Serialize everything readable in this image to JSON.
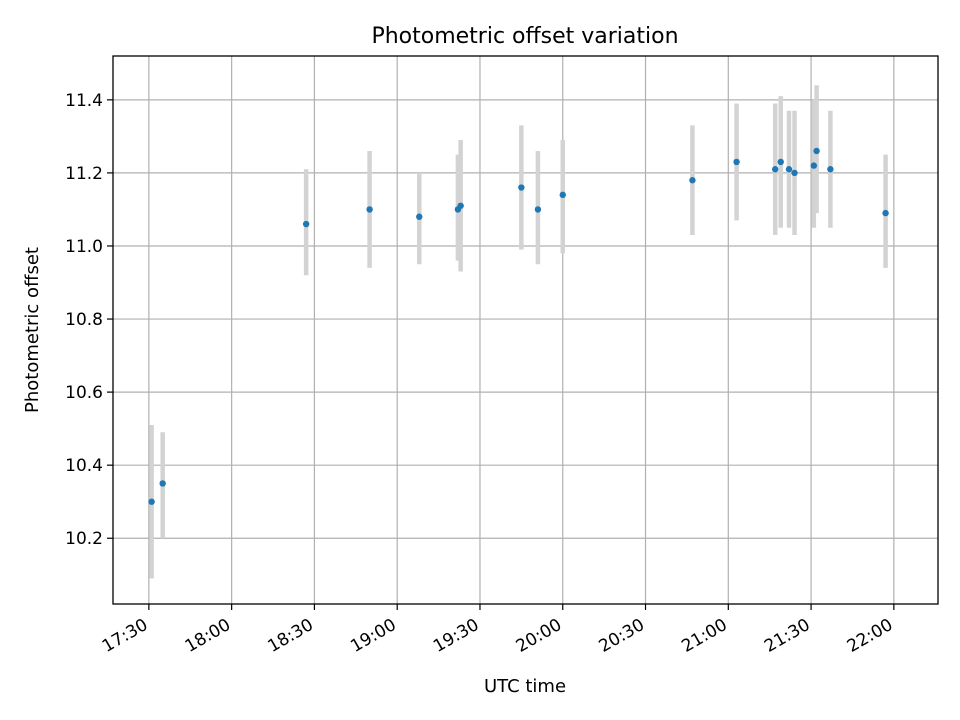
{
  "chart_data": {
    "type": "scatter",
    "title": "Photometric offset variation",
    "xlabel": "UTC time",
    "ylabel": "Photometric offset",
    "x_range": [
      "17:17",
      "22:16"
    ],
    "ylim": [
      10.02,
      11.52
    ],
    "grid": true,
    "x_ticks": [
      "17:30",
      "18:00",
      "18:30",
      "19:00",
      "19:30",
      "20:00",
      "20:30",
      "21:00",
      "21:30",
      "22:00"
    ],
    "y_ticks": [
      10.2,
      10.4,
      10.6,
      10.8,
      11.0,
      11.2,
      11.4
    ],
    "marker_color": "#1f77b4",
    "errorbar_color": "#d3d3d3",
    "series": [
      {
        "points": [
          {
            "t": "17:31",
            "y": 10.3,
            "err_low": 10.09,
            "err_high": 10.51
          },
          {
            "t": "17:35",
            "y": 10.35,
            "err_low": 10.2,
            "err_high": 10.49
          },
          {
            "t": "18:27",
            "y": 11.06,
            "err_low": 10.92,
            "err_high": 11.21
          },
          {
            "t": "18:50",
            "y": 11.1,
            "err_low": 10.94,
            "err_high": 11.26
          },
          {
            "t": "19:08",
            "y": 11.08,
            "err_low": 10.95,
            "err_high": 11.2
          },
          {
            "t": "19:22",
            "y": 11.1,
            "err_low": 10.96,
            "err_high": 11.25
          },
          {
            "t": "19:23",
            "y": 11.11,
            "err_low": 10.93,
            "err_high": 11.29
          },
          {
            "t": "19:45",
            "y": 11.16,
            "err_low": 10.99,
            "err_high": 11.33
          },
          {
            "t": "19:51",
            "y": 11.1,
            "err_low": 10.95,
            "err_high": 11.26
          },
          {
            "t": "20:00",
            "y": 11.14,
            "err_low": 10.98,
            "err_high": 11.29
          },
          {
            "t": "20:47",
            "y": 11.18,
            "err_low": 11.03,
            "err_high": 11.33
          },
          {
            "t": "21:03",
            "y": 11.23,
            "err_low": 11.07,
            "err_high": 11.39
          },
          {
            "t": "21:17",
            "y": 11.21,
            "err_low": 11.03,
            "err_high": 11.39
          },
          {
            "t": "21:19",
            "y": 11.23,
            "err_low": 11.05,
            "err_high": 11.41
          },
          {
            "t": "21:22",
            "y": 11.21,
            "err_low": 11.05,
            "err_high": 11.37
          },
          {
            "t": "21:24",
            "y": 11.2,
            "err_low": 11.03,
            "err_high": 11.37
          },
          {
            "t": "21:31",
            "y": 11.22,
            "err_low": 11.05,
            "err_high": 11.4
          },
          {
            "t": "21:32",
            "y": 11.26,
            "err_low": 11.09,
            "err_high": 11.44
          },
          {
            "t": "21:37",
            "y": 11.21,
            "err_low": 11.05,
            "err_high": 11.37
          },
          {
            "t": "21:57",
            "y": 11.09,
            "err_low": 10.94,
            "err_high": 11.25
          }
        ]
      }
    ]
  }
}
